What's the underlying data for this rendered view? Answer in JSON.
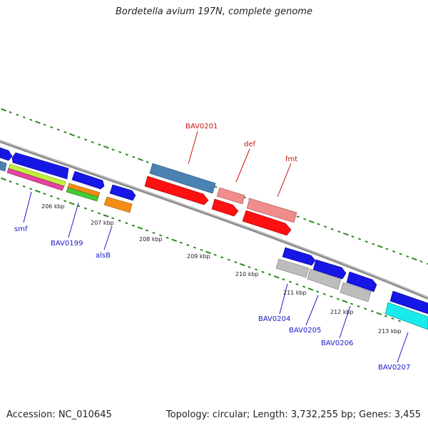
{
  "title": "Bordetella avium 197N, complete genome",
  "footer": {
    "accession": "Accession: NC_010645",
    "topology": "Topology: circular; Length: 3,732,255 bp; Genes: 3,455"
  },
  "colors": {
    "backbone": "#8a8a8a",
    "dot": "#2d8a1e",
    "dark_blue_gene": "#1616e6",
    "steel_blue_gene": "#4a82b4",
    "red_gene": "#ff1010",
    "pink_gene": "#f08c8c",
    "gray_gene": "#bdbdbd",
    "cyan_gene": "#1aeaea",
    "orange_gene": "#f28c14",
    "green_gene": "#44cc33",
    "lime_gene": "#c2f23a",
    "magenta_gene": "#e2449e",
    "label_blue": "#1a1acc",
    "label_red": "#cc1111"
  },
  "tick_labels": [
    "206 kbp",
    "207 kbp",
    "208 kbp",
    "209 kbp",
    "210 kbp",
    "211 kbp",
    "212 kbp",
    "213 kbp"
  ],
  "genes": [
    {
      "name": "smf",
      "color": "blue"
    },
    {
      "name": "BAV0199",
      "color": "blue"
    },
    {
      "name": "alsB",
      "color": "blue"
    },
    {
      "name": "BAV0201",
      "color": "red"
    },
    {
      "name": "def",
      "color": "red"
    },
    {
      "name": "fmt",
      "color": "red"
    },
    {
      "name": "BAV0204",
      "color": "blue"
    },
    {
      "name": "BAV0205",
      "color": "blue"
    },
    {
      "name": "BAV0206",
      "color": "blue"
    },
    {
      "name": "BAV0207",
      "color": "blue"
    }
  ]
}
